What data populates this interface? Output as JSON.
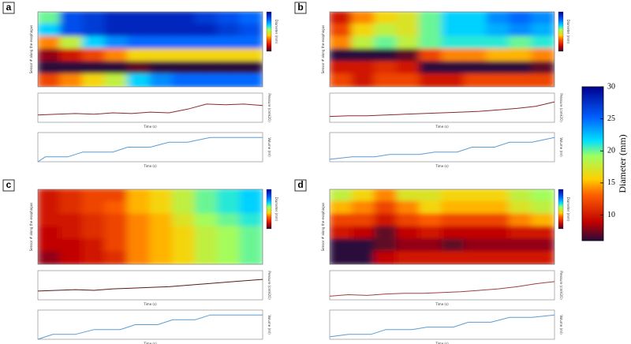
{
  "chart_data": [
    {
      "type": "heatmap",
      "panel_label": "a",
      "ylabel": "Sensor # along the esophagus",
      "z": [
        [
          20,
          26,
          27,
          28,
          28,
          28,
          28,
          27,
          26,
          25
        ],
        [
          22,
          26,
          27,
          28,
          28,
          28,
          28,
          28,
          27,
          26
        ],
        [
          14,
          18,
          22,
          24,
          25,
          25,
          25,
          25,
          25,
          25
        ],
        [
          8,
          10,
          12,
          14,
          16,
          16,
          16,
          16,
          16,
          16
        ],
        [
          6,
          6,
          6,
          6,
          7,
          6,
          6,
          6,
          6,
          6
        ],
        [
          12,
          14,
          16,
          18,
          22,
          24,
          25,
          25,
          25,
          25
        ]
      ]
    },
    {
      "type": "line",
      "xlabel": "Time (s)",
      "ylabel": "Pressure (cmH2O)",
      "color": "#8b2a2a",
      "xlim": [
        0,
        300
      ],
      "ylim": [
        0,
        40
      ],
      "x": [
        0,
        25,
        50,
        75,
        100,
        125,
        150,
        175,
        200,
        225,
        250,
        275,
        300
      ],
      "values": [
        10,
        11,
        12,
        11,
        13,
        12,
        14,
        13,
        18,
        25,
        24,
        25,
        23
      ]
    },
    {
      "type": "line",
      "xlabel": "Time (s)",
      "ylabel": "Volume (ml)",
      "color": "#5b9bd5",
      "xlim": [
        0,
        300
      ],
      "ylim": [
        0,
        60
      ],
      "x": [
        0,
        10,
        40,
        60,
        100,
        120,
        150,
        175,
        200,
        230,
        260,
        300
      ],
      "values": [
        0,
        10,
        10,
        20,
        20,
        30,
        30,
        40,
        40,
        50,
        50,
        50
      ]
    },
    {
      "type": "heatmap",
      "panel_label": "b",
      "ylabel": "Sensor # along the esophagus",
      "z": [
        [
          10,
          14,
          16,
          17,
          20,
          22,
          22,
          24,
          25,
          24
        ],
        [
          12,
          16,
          18,
          17,
          20,
          22,
          22,
          23,
          24,
          23
        ],
        [
          14,
          18,
          20,
          18,
          20,
          21,
          21,
          21,
          20,
          21
        ],
        [
          6,
          6,
          6,
          7,
          12,
          14,
          14,
          15,
          15,
          14
        ],
        [
          10,
          10,
          11,
          10,
          6,
          6,
          6,
          6,
          6,
          7
        ],
        [
          12,
          10,
          12,
          12,
          10,
          10,
          12,
          12,
          12,
          12
        ]
      ]
    },
    {
      "type": "line",
      "xlabel": "Time (s)",
      "ylabel": "Pressure (cmH2O)",
      "color": "#8b2a2a",
      "xlim": [
        0,
        300
      ],
      "ylim": [
        0,
        40
      ],
      "x": [
        0,
        25,
        50,
        75,
        100,
        125,
        150,
        175,
        200,
        225,
        250,
        275,
        300
      ],
      "values": [
        8,
        9,
        9,
        10,
        11,
        12,
        13,
        14,
        15,
        17,
        19,
        22,
        28
      ]
    },
    {
      "type": "line",
      "xlabel": "Time (s)",
      "ylabel": "Volume (ml)",
      "color": "#5b9bd5",
      "xlim": [
        0,
        300
      ],
      "ylim": [
        0,
        60
      ],
      "x": [
        0,
        30,
        60,
        80,
        120,
        140,
        170,
        190,
        220,
        240,
        270,
        300
      ],
      "values": [
        5,
        10,
        10,
        15,
        15,
        20,
        20,
        30,
        30,
        40,
        40,
        50
      ]
    },
    {
      "type": "heatmap",
      "panel_label": "c",
      "ylabel": "Sensor # along the esophagus",
      "z": [
        [
          10,
          11,
          12,
          12,
          15,
          16,
          18,
          20,
          21,
          22
        ],
        [
          10,
          11,
          12,
          13,
          15,
          16,
          18,
          20,
          21,
          22
        ],
        [
          10,
          10,
          11,
          12,
          14,
          15,
          17,
          19,
          20,
          21
        ],
        [
          9,
          10,
          11,
          12,
          14,
          15,
          16,
          18,
          19,
          20
        ],
        [
          9,
          9,
          10,
          12,
          14,
          15,
          16,
          18,
          19,
          20
        ],
        [
          8,
          9,
          10,
          11,
          14,
          15,
          16,
          18,
          19,
          20
        ]
      ]
    },
    {
      "type": "line",
      "xlabel": "Time (s)",
      "ylabel": "Pressure (cmH2O)",
      "color": "#5a1a1a",
      "xlim": [
        0,
        300
      ],
      "ylim": [
        0,
        40
      ],
      "x": [
        0,
        25,
        50,
        75,
        100,
        125,
        150,
        175,
        200,
        225,
        250,
        275,
        300
      ],
      "values": [
        12,
        13,
        14,
        13,
        15,
        16,
        17,
        18,
        20,
        22,
        24,
        26,
        28
      ]
    },
    {
      "type": "line",
      "xlabel": "Time (s)",
      "ylabel": "Volume (ml)",
      "color": "#5b9bd5",
      "xlim": [
        0,
        300
      ],
      "ylim": [
        0,
        60
      ],
      "x": [
        0,
        20,
        50,
        75,
        110,
        130,
        160,
        180,
        210,
        230,
        270,
        300
      ],
      "values": [
        0,
        10,
        10,
        20,
        20,
        30,
        30,
        40,
        40,
        50,
        50,
        50
      ]
    },
    {
      "type": "heatmap",
      "panel_label": "d",
      "ylabel": "Sensor # along the esophagus",
      "z": [
        [
          18,
          16,
          14,
          17,
          17,
          16,
          16,
          16,
          18,
          19
        ],
        [
          15,
          14,
          12,
          14,
          16,
          15,
          15,
          15,
          17,
          18
        ],
        [
          12,
          12,
          10,
          12,
          13,
          12,
          12,
          12,
          14,
          15
        ],
        [
          10,
          9,
          7,
          9,
          10,
          9,
          9,
          9,
          10,
          10
        ],
        [
          6,
          6,
          7,
          8,
          8,
          7,
          8,
          8,
          8,
          8
        ],
        [
          6,
          6,
          9,
          10,
          10,
          10,
          10,
          10,
          10,
          10
        ]
      ]
    },
    {
      "type": "line",
      "xlabel": "Time (s)",
      "ylabel": "Pressure (cmH2O)",
      "color": "#a04040",
      "xlim": [
        0,
        300
      ],
      "ylim": [
        0,
        40
      ],
      "x": [
        0,
        25,
        50,
        75,
        100,
        125,
        150,
        175,
        200,
        225,
        250,
        275,
        300
      ],
      "values": [
        5,
        7,
        6,
        8,
        9,
        9,
        10,
        11,
        13,
        15,
        18,
        22,
        25
      ]
    },
    {
      "type": "line",
      "xlabel": "Time (s)",
      "ylabel": "Volume (ml)",
      "color": "#5b9bd5",
      "xlim": [
        0,
        300
      ],
      "ylim": [
        0,
        60
      ],
      "x": [
        0,
        25,
        55,
        75,
        110,
        130,
        165,
        185,
        215,
        240,
        270,
        300
      ],
      "values": [
        5,
        10,
        10,
        20,
        20,
        25,
        25,
        35,
        35,
        45,
        45,
        50
      ]
    },
    {
      "type": "colorbar",
      "label": "Diameter (mm)",
      "zlim": [
        6,
        30
      ],
      "ticks": [
        10,
        15,
        20,
        25,
        30
      ]
    }
  ]
}
